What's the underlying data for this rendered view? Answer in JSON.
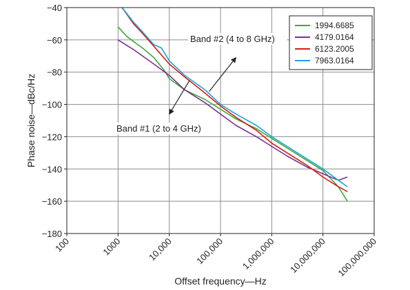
{
  "chart_data": {
    "type": "line",
    "title": "",
    "xlabel": "Offset frequency—Hz",
    "ylabel": "Phase noise—dBc/Hz",
    "x_scale": "log",
    "xlim": [
      100,
      100000000
    ],
    "ylim": [
      -180,
      -40
    ],
    "x_ticks": [
      100,
      1000,
      10000,
      100000,
      1000000,
      10000000,
      100000000
    ],
    "x_tick_labels": [
      "100",
      "1000",
      "10,000",
      "100,000",
      "1,000,000",
      "10,000,000",
      "100,000,000"
    ],
    "y_ticks": [
      -180,
      -160,
      -140,
      -120,
      -100,
      -80,
      -60,
      -40
    ],
    "y_tick_labels": [
      "−180",
      "−160",
      "−140",
      "−120",
      "−100",
      "−80",
      "−60",
      "−40"
    ],
    "grid": true,
    "legend_position": "top-right",
    "series": [
      {
        "name": "1994.6685",
        "color": "#3aaa35",
        "x": [
          1000,
          1500,
          2000,
          3000,
          5000,
          8000,
          10000,
          20000,
          50000,
          100000,
          200000,
          500000,
          1000000,
          2000000,
          5000000,
          10000000,
          20000000,
          30000000
        ],
        "y": [
          -52,
          -58,
          -61,
          -65,
          -71,
          -79,
          -84,
          -91,
          -97,
          -103,
          -109,
          -115,
          -121,
          -127,
          -135,
          -141,
          -151,
          -160
        ]
      },
      {
        "name": "4179.0164",
        "color": "#7b2d8e",
        "x": [
          1000,
          2000,
          5000,
          10000,
          20000,
          50000,
          100000,
          200000,
          500000,
          1000000,
          2000000,
          5000000,
          10000000,
          20000000,
          30000000
        ],
        "y": [
          -60,
          -66,
          -75,
          -82,
          -91,
          -99,
          -106,
          -113,
          -120,
          -126,
          -132,
          -139,
          -143,
          -147,
          -145
        ]
      },
      {
        "name": "6123.2005",
        "color": "#d7191c",
        "x": [
          1200,
          2000,
          3000,
          5000,
          10000,
          20000,
          50000,
          100000,
          200000,
          500000,
          1000000,
          2000000,
          5000000,
          10000000,
          20000000,
          30000000
        ],
        "y": [
          -40,
          -50,
          -56,
          -64,
          -75,
          -83,
          -93,
          -101,
          -108,
          -116,
          -124,
          -130,
          -138,
          -145,
          -151,
          -154
        ]
      },
      {
        "name": "7963.0164",
        "color": "#1aa3d9",
        "x": [
          1200,
          2000,
          3000,
          5000,
          7000,
          10000,
          20000,
          50000,
          100000,
          200000,
          500000,
          1000000,
          2000000,
          5000000,
          10000000,
          20000000,
          30000000
        ],
        "y": [
          -40,
          -49,
          -55,
          -63,
          -65,
          -73,
          -82,
          -91,
          -100,
          -106,
          -113,
          -120,
          -126,
          -134,
          -140,
          -147,
          -151
        ]
      }
    ],
    "annotations": [
      {
        "text": "Band #2 (4 to 8 GHz)",
        "arrow_from": [
          60000,
          -92
        ],
        "arrow_to": [
          200000,
          -71
        ]
      },
      {
        "text": "Band #1 (2 to 4 GHz)",
        "arrow_from": [
          25000,
          -85
        ],
        "arrow_to": [
          10000,
          -106
        ]
      }
    ]
  }
}
